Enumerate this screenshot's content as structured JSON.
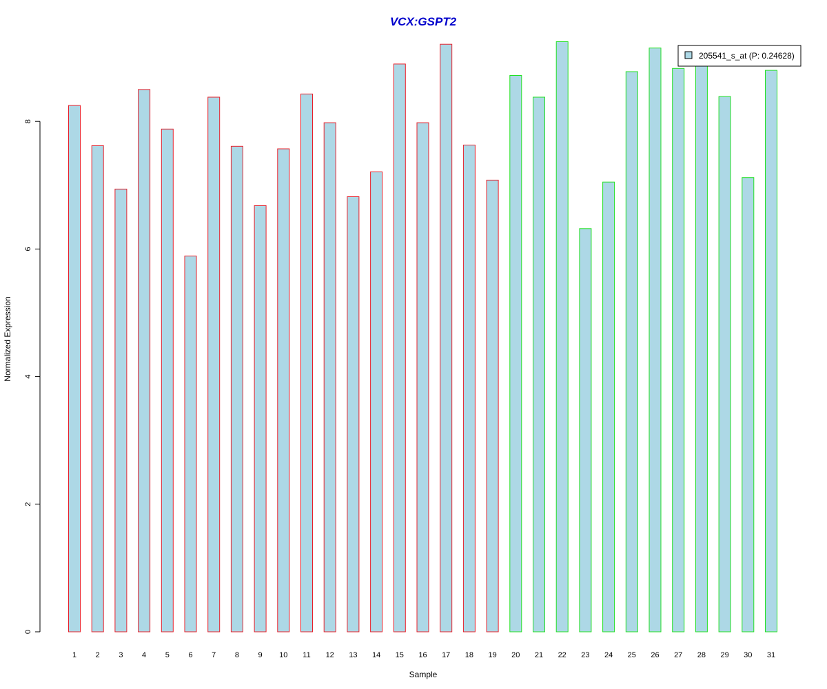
{
  "chart_data": {
    "type": "bar",
    "title": "VCX:GSPT2",
    "xlabel": "Sample",
    "ylabel": "Normalized Expression",
    "categories": [
      "1",
      "2",
      "3",
      "4",
      "5",
      "6",
      "7",
      "8",
      "9",
      "10",
      "11",
      "12",
      "13",
      "14",
      "15",
      "16",
      "17",
      "18",
      "19",
      "20",
      "21",
      "22",
      "23",
      "24",
      "25",
      "26",
      "27",
      "28",
      "29",
      "30",
      "31"
    ],
    "series": [
      {
        "name": "205541_s_at (P: 0.24628)",
        "values": [
          8.25,
          7.62,
          6.94,
          8.5,
          7.88,
          5.89,
          8.38,
          7.61,
          6.68,
          7.57,
          8.43,
          7.98,
          6.82,
          7.21,
          8.9,
          7.98,
          9.21,
          7.63,
          7.08,
          8.72,
          8.38,
          9.25,
          6.32,
          7.05,
          8.78,
          9.15,
          8.83,
          8.9,
          8.39,
          7.12,
          8.8
        ]
      }
    ],
    "groups": [
      {
        "from": 1,
        "to": 19,
        "border_color": "#e8202a"
      },
      {
        "from": 20,
        "to": 31,
        "border_color": "#22e022"
      }
    ],
    "yticks": [
      "0",
      "2",
      "4",
      "6",
      "8"
    ],
    "ylim": [
      0,
      9.25
    ],
    "legend": {
      "label": "205541_s_at (P: 0.24628)",
      "position": "top-right"
    },
    "grid": false,
    "colors": {
      "bar_fill": "#add8e6",
      "title": "#0000cc"
    }
  }
}
